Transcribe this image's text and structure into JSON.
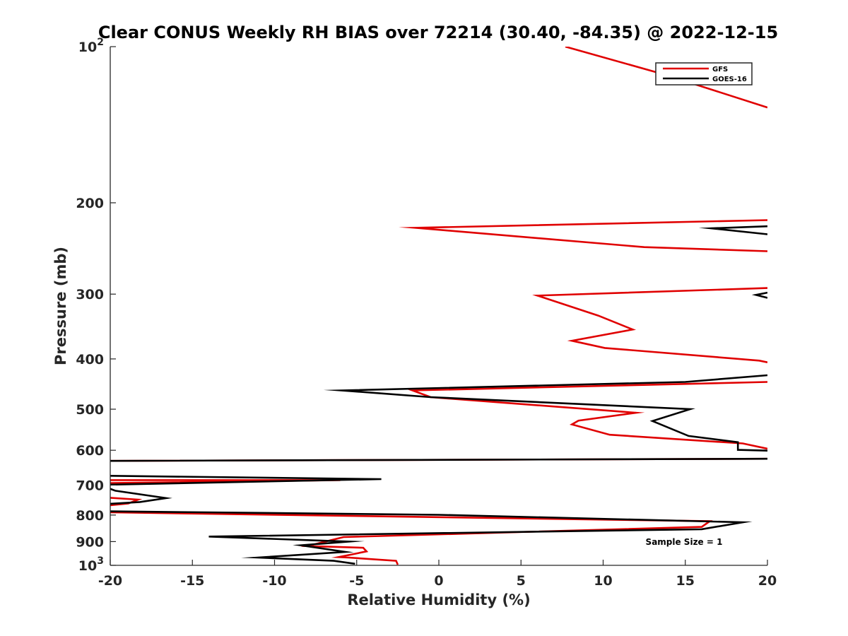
{
  "chart_data": {
    "type": "line",
    "title": "Clear CONUS Weekly RH BIAS over 72214 (30.40, -84.35) @ 2022-12-15",
    "xlabel": "Relative Humidity (%)",
    "ylabel": "Pressure (mb)",
    "xlim": [
      -20,
      20
    ],
    "ylim": [
      100,
      1000
    ],
    "yscale": "log",
    "y_reversed": true,
    "grid": false,
    "legend_position": "top-right",
    "x_ticks": [
      -20,
      -15,
      -10,
      -5,
      0,
      5,
      10,
      15,
      20
    ],
    "x_tick_labels": [
      "-20",
      "-15",
      "-10",
      "-5",
      "0",
      "5",
      "10",
      "15",
      "20"
    ],
    "y_ticks": [
      100,
      200,
      300,
      400,
      500,
      600,
      700,
      800,
      900,
      1000
    ],
    "y_tick_labels": [
      {
        "base": "10",
        "exp": "2"
      },
      {
        "base": "200",
        "exp": ""
      },
      {
        "base": "300",
        "exp": ""
      },
      {
        "base": "400",
        "exp": ""
      },
      {
        "base": "500",
        "exp": ""
      },
      {
        "base": "600",
        "exp": ""
      },
      {
        "base": "700",
        "exp": ""
      },
      {
        "base": "800",
        "exp": ""
      },
      {
        "base": "900",
        "exp": ""
      },
      {
        "base": "10",
        "exp": "3"
      }
    ],
    "annotation": "Sample Size = 1",
    "series": [
      {
        "name": "GFS",
        "color": "#e00000",
        "points": [
          [
            7.7,
            100
          ],
          [
            13.7,
            113.1
          ],
          [
            20,
            131
          ],
          [
            null,
            null
          ],
          [
            20,
            216
          ],
          [
            -1.4,
            223.5
          ],
          [
            12.5,
            243.5
          ],
          [
            20,
            248
          ],
          [
            null,
            null
          ],
          [
            20,
            292
          ],
          [
            6.0,
            302
          ],
          [
            9.7,
            330
          ],
          [
            11.8,
            351
          ],
          [
            8.1,
            369
          ],
          [
            10.1,
            381
          ],
          [
            19.5,
            403
          ],
          [
            20,
            406
          ],
          [
            null,
            null
          ],
          [
            20,
            443
          ],
          [
            -1.6,
            460
          ],
          [
            -0.5,
            474
          ],
          [
            12.0,
            508
          ],
          [
            8.5,
            526
          ],
          [
            8.1,
            535
          ],
          [
            10.4,
            560
          ],
          [
            18.5,
            582
          ],
          [
            20,
            596
          ],
          [
            null,
            null
          ],
          [
            20,
            623
          ],
          [
            -20,
            629
          ],
          [
            null,
            null
          ],
          [
            -20,
            685
          ],
          [
            -6.0,
            685
          ],
          [
            -20,
            694
          ],
          [
            null,
            null
          ],
          [
            -20,
            741
          ],
          [
            -18.3,
            747
          ],
          [
            -18.9,
            760
          ],
          [
            -20,
            766
          ],
          [
            null,
            null
          ],
          [
            -20,
            790
          ],
          [
            -11,
            798
          ],
          [
            16.5,
            822
          ],
          [
            16.0,
            843
          ],
          [
            -5.8,
            882
          ],
          [
            -8,
            918
          ],
          [
            -4.6,
            925
          ],
          [
            -4.4,
            940
          ],
          [
            -6.1,
            964
          ],
          [
            -5.5,
            966
          ],
          [
            -2.6,
            980
          ],
          [
            -2.5,
            997
          ]
        ]
      },
      {
        "name": "GOES-16",
        "color": "#000000",
        "points": [
          [
            20,
            222
          ],
          [
            16.6,
            224
          ],
          [
            20,
            230
          ],
          [
            null,
            null
          ],
          [
            20,
            298
          ],
          [
            19.3,
            301
          ],
          [
            20,
            305
          ],
          [
            null,
            null
          ],
          [
            20,
            430
          ],
          [
            15.0,
            443
          ],
          [
            -5.9,
            460
          ],
          [
            -0.5,
            474
          ],
          [
            15.3,
            500
          ],
          [
            13.0,
            527
          ],
          [
            15.2,
            563
          ],
          [
            18.2,
            579
          ],
          [
            18.2,
            599
          ],
          [
            20,
            601
          ],
          [
            null,
            null
          ],
          [
            20,
            623
          ],
          [
            -20,
            629
          ],
          [
            null,
            null
          ],
          [
            -20,
            672
          ],
          [
            -3.5,
            682
          ],
          [
            -20,
            699
          ],
          [
            null,
            null
          ],
          [
            -20,
            712
          ],
          [
            -19.7,
            718
          ],
          [
            -16.6,
            742
          ],
          [
            -18.2,
            755
          ],
          [
            -20,
            761
          ],
          [
            null,
            null
          ],
          [
            -20,
            787
          ],
          [
            0,
            799
          ],
          [
            18.5,
            826
          ],
          [
            16.0,
            852
          ],
          [
            -14.0,
            880
          ],
          [
            -5.5,
            900
          ],
          [
            -8.4,
            915
          ],
          [
            -5.7,
            942
          ],
          [
            -11.0,
            966
          ],
          [
            -6.4,
            980
          ],
          [
            -5.1,
            993
          ]
        ]
      }
    ]
  },
  "legend": {
    "items": [
      {
        "label": "GFS",
        "color": "#e00000"
      },
      {
        "label": "GOES-16",
        "color": "#000000"
      }
    ]
  }
}
